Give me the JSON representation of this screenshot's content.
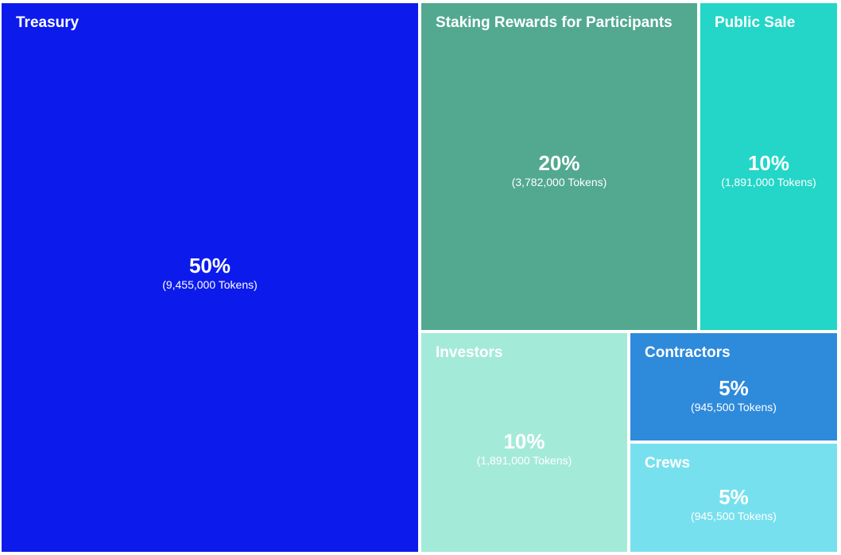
{
  "chart_data": {
    "type": "treemap",
    "items": [
      {
        "label": "Treasury",
        "value": 50,
        "percent_label": "50%",
        "tokens_label": "(9,455,000 Tokens)",
        "color": "#0C1BEC"
      },
      {
        "label": "Staking Rewards for Participants",
        "value": 20,
        "percent_label": "20%",
        "tokens_label": "(3,782,000 Tokens)",
        "color": "#52A98F"
      },
      {
        "label": "Public Sale",
        "value": 10,
        "percent_label": "10%",
        "tokens_label": "(1,891,000 Tokens)",
        "color": "#23D6C7"
      },
      {
        "label": "Investors",
        "value": 10,
        "percent_label": "10%",
        "tokens_label": "(1,891,000 Tokens)",
        "color": "#A4EAD9"
      },
      {
        "label": "Contractors",
        "value": 5,
        "percent_label": "5%",
        "tokens_label": "(945,500 Tokens)",
        "color": "#2E8ADB"
      },
      {
        "label": "Crews",
        "value": 5,
        "percent_label": "5%",
        "tokens_label": "(945,500 Tokens)",
        "color": "#77E0EE"
      }
    ]
  }
}
